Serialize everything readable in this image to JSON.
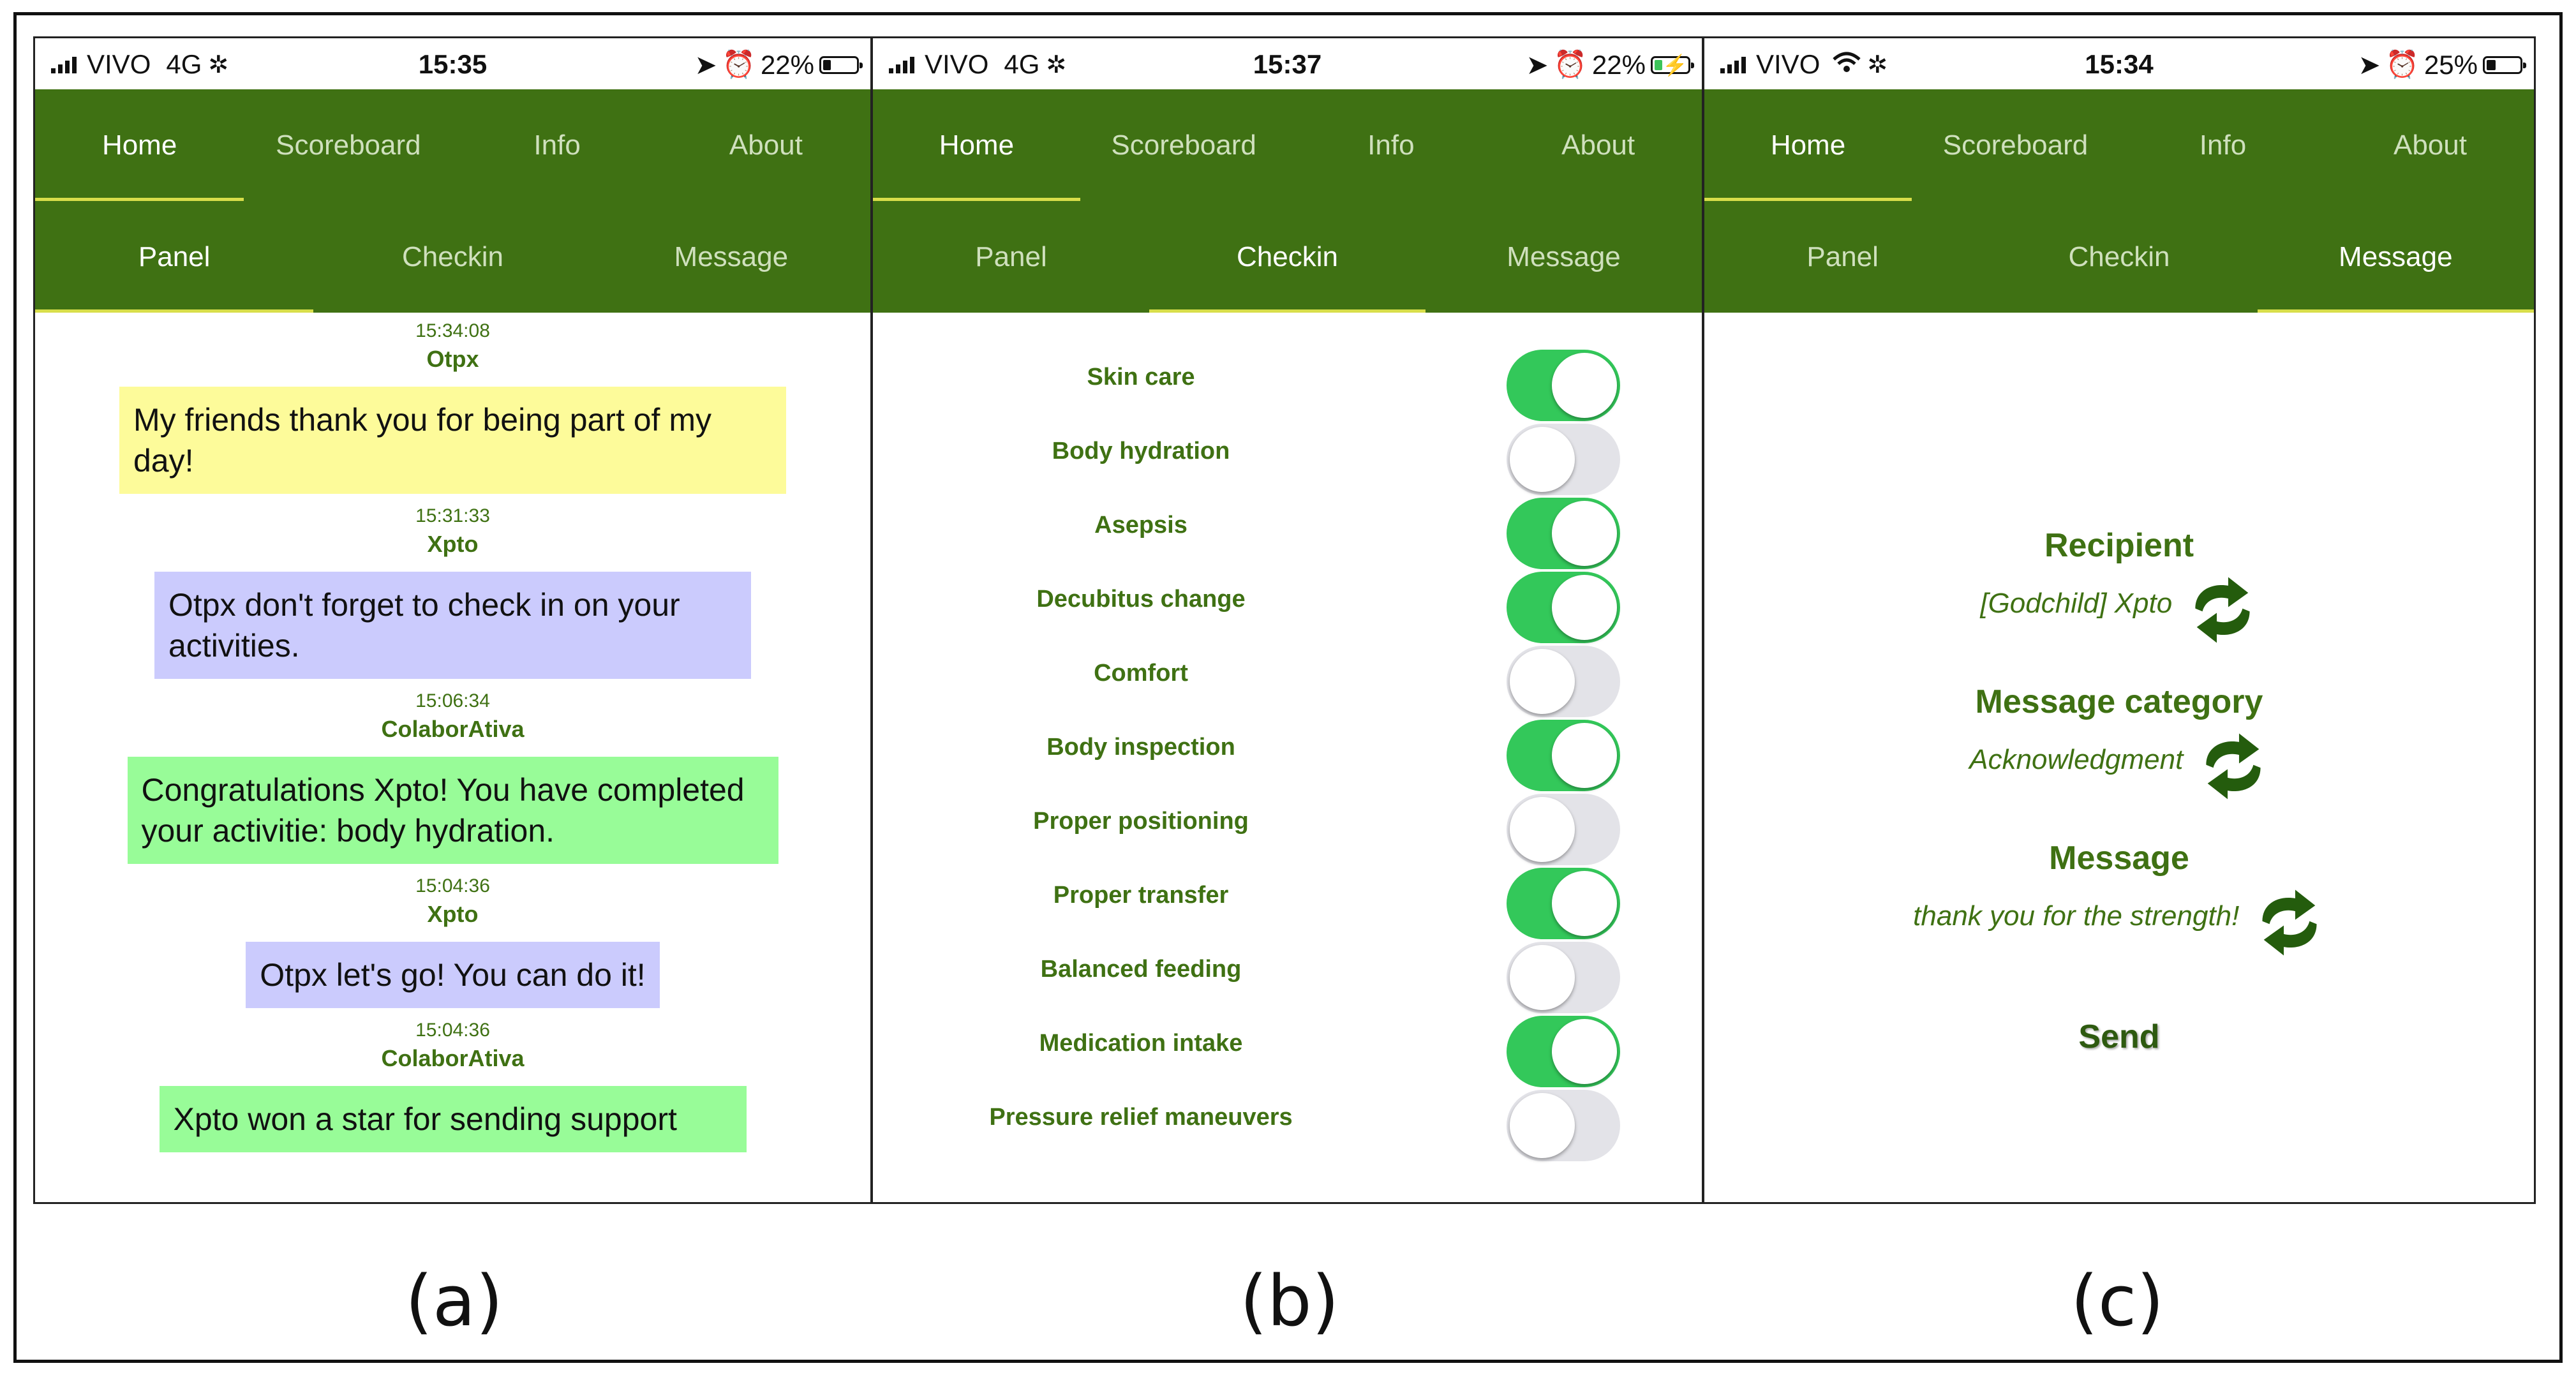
{
  "phones": [
    {
      "status": {
        "carrier": "VIVO",
        "network": "4G",
        "time": "15:35",
        "battery": "22%"
      },
      "nav": [
        "Home",
        "Scoreboard",
        "Info",
        "About"
      ],
      "subnav": [
        "Panel",
        "Checkin",
        "Message"
      ],
      "caption": "(a)",
      "messages": [
        {
          "time": "15:34:08",
          "sender": "Otpx",
          "text": "My friends thank you for being part of my day!"
        },
        {
          "time": "15:31:33",
          "sender": "Xpto",
          "text": "Otpx don't forget to check in on your activities."
        },
        {
          "time": "15:06:34",
          "sender": "ColaborAtiva",
          "text": "Congratulations Xpto! You have completed your activitie: body hydration."
        },
        {
          "time": "15:04:36",
          "sender": "Xpto",
          "text": "Otpx let's go! You can do it!"
        },
        {
          "time": "15:04:36",
          "sender": "ColaborAtiva",
          "text": "Xpto won a star for sending support"
        }
      ]
    },
    {
      "status": {
        "carrier": "VIVO",
        "network": "4G",
        "time": "15:37",
        "battery": "22%"
      },
      "nav": [
        "Home",
        "Scoreboard",
        "Info",
        "About"
      ],
      "subnav": [
        "Panel",
        "Checkin",
        "Message"
      ],
      "caption": "(b)",
      "checkins": [
        {
          "label": "Skin care",
          "on": true
        },
        {
          "label": "Body hydration",
          "on": false
        },
        {
          "label": "Asepsis",
          "on": true
        },
        {
          "label": "Decubitus change",
          "on": true
        },
        {
          "label": "Comfort",
          "on": false
        },
        {
          "label": "Body inspection",
          "on": true
        },
        {
          "label": "Proper positioning",
          "on": false
        },
        {
          "label": "Proper transfer",
          "on": true
        },
        {
          "label": "Balanced feeding",
          "on": false
        },
        {
          "label": "Medication intake",
          "on": true
        },
        {
          "label": "Pressure relief maneuvers",
          "on": false
        }
      ]
    },
    {
      "status": {
        "carrier": "VIVO",
        "network": "",
        "time": "15:34",
        "battery": "25%"
      },
      "nav": [
        "Home",
        "Scoreboard",
        "Info",
        "About"
      ],
      "subnav": [
        "Panel",
        "Checkin",
        "Message"
      ],
      "caption": "(c)",
      "form": {
        "recipient_label": "Recipient",
        "recipient_value": "[Godchild] Xpto",
        "category_label": "Message category",
        "category_value": "Acknowledgment",
        "message_label": "Message",
        "message_value": "thank you for the strength!",
        "send_label": "Send"
      }
    }
  ],
  "colors": {
    "nav_bg": "#3f7113",
    "accent": "#d8de4a",
    "toggle_on": "#33c85a"
  },
  "icons": [
    "signal-icon",
    "loading-icon",
    "wifi-icon",
    "location-icon",
    "alarm-icon",
    "battery-icon",
    "cycle-icon"
  ]
}
